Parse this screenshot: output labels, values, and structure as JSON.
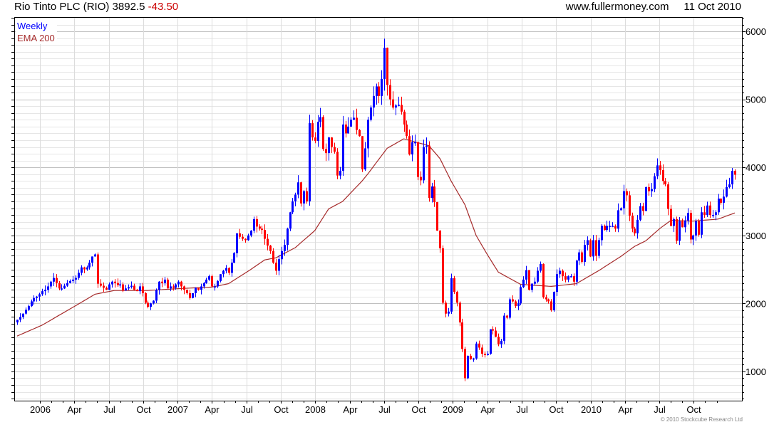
{
  "header": {
    "name": "Rio Tinto PLC (RIO)",
    "price": "3892.5",
    "change": "-43.50",
    "site": "www.fullermoney.com",
    "date": "11 Oct 2010"
  },
  "legend": {
    "period": "Weekly",
    "ema": "EMA 200"
  },
  "copyright": "© 2010 Stockcube Research Ltd",
  "colors": {
    "up": "#0000ff",
    "down": "#ff0000",
    "ema": "#a52a2a",
    "grid_major": "#c0c0c0",
    "grid_minor": "#e6e6e6"
  },
  "chart_data": {
    "type": "candlestick",
    "title": "Rio Tinto PLC (RIO) weekly",
    "ylim": [
      570,
      6210
    ],
    "y_ticks": [
      1000,
      2000,
      3000,
      4000,
      5000,
      6000
    ],
    "y_minor_step": 100,
    "x_tick_labels": [
      "2006",
      "Apr",
      "Jul",
      "Oct",
      "2007",
      "Apr",
      "Jul",
      "Oct",
      "2008",
      "Apr",
      "Jul",
      "Oct",
      "2009",
      "Apr",
      "Jul",
      "Oct",
      "2010",
      "Apr",
      "Jul",
      "Oct"
    ],
    "x_tick_first_week": 8.2,
    "weeks_per_quarter": 12.37,
    "first_open": 1720,
    "weekly_close": [
      1760,
      1800,
      1850,
      1906,
      1960,
      2030,
      2080,
      2100,
      2135,
      2180,
      2200,
      2250,
      2320,
      2375,
      2300,
      2220,
      2220,
      2260,
      2300,
      2330,
      2350,
      2375,
      2450,
      2530,
      2500,
      2530,
      2600,
      2690,
      2720,
      2290,
      2260,
      2230,
      2200,
      2280,
      2320,
      2300,
      2270,
      2280,
      2190,
      2220,
      2240,
      2260,
      2200,
      2180,
      2250,
      2150,
      2010,
      1950,
      2000,
      2040,
      2200,
      2320,
      2300,
      2350,
      2220,
      2250,
      2230,
      2280,
      2320,
      2250,
      2200,
      2150,
      2080,
      2150,
      2230,
      2200,
      2250,
      2300,
      2350,
      2400,
      2250,
      2250,
      2330,
      2430,
      2480,
      2520,
      2450,
      2600,
      2740,
      3030,
      2980,
      2950,
      2930,
      3000,
      3070,
      3240,
      3130,
      3100,
      3080,
      2950,
      2850,
      2770,
      2600,
      2480,
      2650,
      2770,
      2860,
      3100,
      3340,
      3500,
      3600,
      3780,
      3470,
      3650,
      3500,
      4650,
      4440,
      4390,
      4670,
      4740,
      4270,
      4210,
      4440,
      4300,
      4230,
      3880,
      3950,
      4630,
      4500,
      4600,
      4700,
      4730,
      4550,
      4460,
      3970,
      4280,
      4700,
      4880,
      5050,
      5190,
      5050,
      5300,
      5760,
      5210,
      5000,
      4880,
      4910,
      4920,
      4820,
      4630,
      4460,
      4190,
      4370,
      4370,
      3860,
      3810,
      4300,
      4320,
      3550,
      3720,
      3490,
      3070,
      2810,
      2010,
      1850,
      1880,
      2370,
      2170,
      2010,
      1720,
      1330,
      900,
      1230,
      1180,
      1190,
      1410,
      1350,
      1260,
      1240,
      1260,
      1620,
      1600,
      1510,
      1400,
      1450,
      1820,
      1790,
      2060,
      2030,
      1960,
      2000,
      2240,
      2350,
      2490,
      2200,
      2290,
      2320,
      2480,
      2580,
      2090,
      2060,
      2030,
      1900,
      2170,
      2430,
      2480,
      2400,
      2350,
      2400,
      2400,
      2320,
      2630,
      2750,
      2610,
      2860,
      2930,
      2690,
      2930,
      2700,
      2930,
      3140,
      3080,
      3140,
      3140,
      3140,
      3100,
      3370,
      3400,
      3650,
      3590,
      3290,
      3100,
      3030,
      3230,
      3430,
      3360,
      3710,
      3650,
      3680,
      3870,
      4030,
      3960,
      3800,
      3750,
      3390,
      3140,
      3240,
      2920,
      3210,
      3120,
      3220,
      3330,
      2940,
      3000,
      3210,
      3010,
      3340,
      3300,
      3440,
      3300,
      3300,
      3340,
      3540,
      3480,
      3570,
      3710,
      3750,
      3950,
      3892.5
    ],
    "ema200_keypoints": [
      [
        0,
        1520
      ],
      [
        9,
        1680
      ],
      [
        22,
        1990
      ],
      [
        28,
        2135
      ],
      [
        35,
        2190
      ],
      [
        47,
        2190
      ],
      [
        59,
        2220
      ],
      [
        70,
        2240
      ],
      [
        76,
        2290
      ],
      [
        84,
        2500
      ],
      [
        89,
        2640
      ],
      [
        93,
        2670
      ],
      [
        100,
        2820
      ],
      [
        107,
        3070
      ],
      [
        112,
        3390
      ],
      [
        117,
        3500
      ],
      [
        124,
        3800
      ],
      [
        126,
        3900
      ],
      [
        133,
        4280
      ],
      [
        139,
        4420
      ],
      [
        148,
        4320
      ],
      [
        152,
        4130
      ],
      [
        156,
        3800
      ],
      [
        161,
        3450
      ],
      [
        165,
        3000
      ],
      [
        169,
        2720
      ],
      [
        173,
        2460
      ],
      [
        181,
        2280
      ],
      [
        192,
        2250
      ],
      [
        201,
        2290
      ],
      [
        209,
        2480
      ],
      [
        217,
        2690
      ],
      [
        222,
        2840
      ],
      [
        226,
        2920
      ],
      [
        231,
        3100
      ],
      [
        235,
        3220
      ],
      [
        243,
        3210
      ],
      [
        252,
        3240
      ],
      [
        258,
        3330
      ]
    ]
  }
}
